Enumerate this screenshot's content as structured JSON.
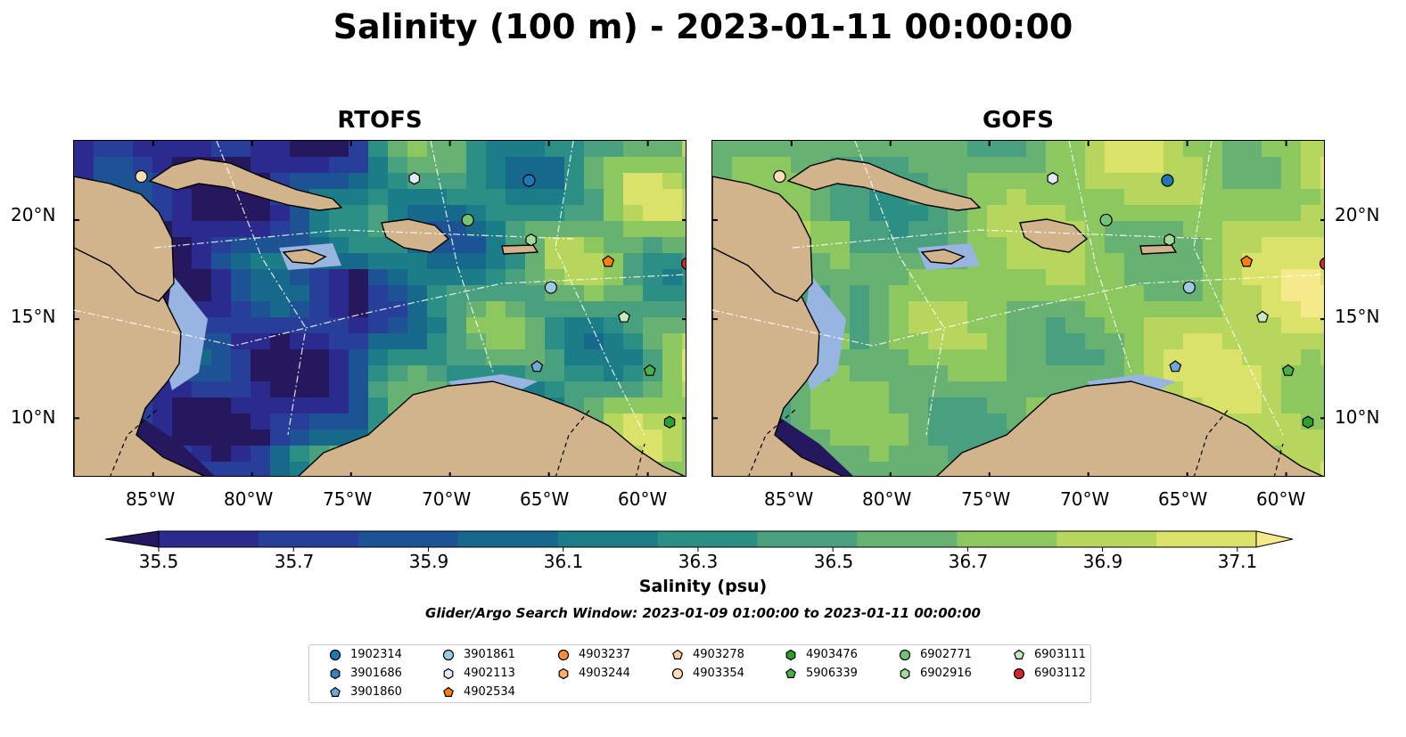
{
  "title": "Salinity (100 m) - 2023-01-11 00:00:00",
  "panels": [
    {
      "label": "RTOFS",
      "palette": "rtofs"
    },
    {
      "label": "GOFS",
      "palette": "gofs"
    }
  ],
  "lat_labels": [
    "20°N",
    "15°N",
    "10°N"
  ],
  "lon_labels": [
    "85°W",
    "80°W",
    "75°W",
    "70°W",
    "65°W",
    "60°W"
  ],
  "colorbar": {
    "label": "Salinity (psu)",
    "min": 35.4,
    "max": 37.2,
    "ticks": [
      "35.5",
      "35.7",
      "35.9",
      "36.1",
      "36.3",
      "36.5",
      "36.7",
      "36.9",
      "37.1"
    ],
    "colors": [
      "#26185e",
      "#2b2b8f",
      "#283f9a",
      "#1d5394",
      "#16698a",
      "#1b7d87",
      "#2c8f86",
      "#48a07f",
      "#67b272",
      "#8cc760",
      "#b6d65d",
      "#dbe26a",
      "#f6e98a"
    ]
  },
  "search_window": "Glider/Argo Search Window: 2023-01-09 01:00:00 to 2023-01-11 00:00:00",
  "chart_data": {
    "type": "map",
    "title": "Salinity (100 m) - 2023-01-11 00:00:00",
    "variable": "Salinity (psu)",
    "depth_m": 100,
    "time": "2023-01-11 00:00:00",
    "extent": {
      "lon": [
        -89,
        -58
      ],
      "lat": [
        7,
        24
      ]
    },
    "colorbar_range": [
      35.4,
      37.2
    ],
    "panels": [
      "RTOFS",
      "GOFS"
    ],
    "floats": [
      {
        "id": "1902314",
        "marker": "circle",
        "color": "#1f77b4",
        "lon": -66,
        "lat": 22
      },
      {
        "id": "3901686",
        "marker": "hexagon",
        "color": "#3b7fc4",
        "lon": null,
        "lat": null
      },
      {
        "id": "3901860",
        "marker": "pentagon",
        "color": "#6ea8dc",
        "lon": -65.6,
        "lat": 12.6
      },
      {
        "id": "3901861",
        "marker": "circle",
        "color": "#9ecae1",
        "lon": -64.9,
        "lat": 16.6
      },
      {
        "id": "4902113",
        "marker": "hexagon",
        "color": "#deebf7",
        "lon": -71.8,
        "lat": 22.1
      },
      {
        "id": "4902534",
        "marker": "pentagon",
        "color": "#ff7f0e",
        "lon": -62,
        "lat": 17.9
      },
      {
        "id": "4903237",
        "marker": "circle",
        "color": "#fd8d3c",
        "lon": null,
        "lat": null
      },
      {
        "id": "4903244",
        "marker": "hexagon",
        "color": "#fdae6b",
        "lon": null,
        "lat": null
      },
      {
        "id": "4903278",
        "marker": "pentagon",
        "color": "#fdd0a2",
        "lon": null,
        "lat": null
      },
      {
        "id": "4903354",
        "marker": "circle",
        "color": "#feddb8",
        "lon": -85.6,
        "lat": 22.2
      },
      {
        "id": "4903476",
        "marker": "hexagon",
        "color": "#2ca02c",
        "lon": -58.9,
        "lat": 9.8
      },
      {
        "id": "5906339",
        "marker": "pentagon",
        "color": "#4daf4a",
        "lon": -59.9,
        "lat": 12.4
      },
      {
        "id": "6902771",
        "marker": "circle",
        "color": "#74c476",
        "lon": -69.1,
        "lat": 20.0
      },
      {
        "id": "6902916",
        "marker": "hexagon",
        "color": "#a1d99b",
        "lon": -65.9,
        "lat": 19.0
      },
      {
        "id": "6903111",
        "marker": "pentagon",
        "color": "#c7e9c0",
        "lon": -61.2,
        "lat": 15.1
      },
      {
        "id": "6903112",
        "marker": "circle",
        "color": "#d62728",
        "lon": -58,
        "lat": 17.8
      }
    ]
  }
}
